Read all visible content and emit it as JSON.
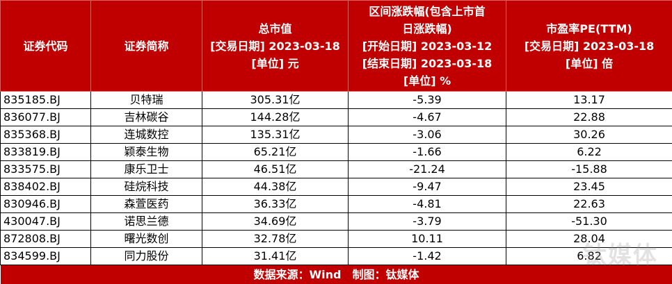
{
  "table": {
    "header": [
      [
        "证券代码"
      ],
      [
        "证券简称"
      ],
      [
        "总市值",
        "[交易日期] 2023-03-18",
        "[单位] 元"
      ],
      [
        "区间涨跌幅(包含上市首",
        "日涨跌幅)",
        "[开始日期] 2023-03-12",
        "[结束日期] 2023-03-18",
        "[单位] %"
      ],
      [
        "市盈率PE(TTM)",
        "[交易日期] 2023-03-18",
        "[单位] 倍"
      ]
    ],
    "rows": [
      [
        "835185.BJ",
        "贝特瑞",
        "305.31亿",
        "-5.39",
        "13.17"
      ],
      [
        "836077.BJ",
        "吉林碳谷",
        "144.28亿",
        "-4.67",
        "22.88"
      ],
      [
        "835368.BJ",
        "连城数控",
        "135.31亿",
        "-3.06",
        "30.26"
      ],
      [
        "833819.BJ",
        "颖泰生物",
        "65.21亿",
        "-1.66",
        "6.22"
      ],
      [
        "833575.BJ",
        "康乐卫士",
        "46.51亿",
        "-21.24",
        "-15.88"
      ],
      [
        "838402.BJ",
        "硅烷科技",
        "44.38亿",
        "-9.47",
        "23.45"
      ],
      [
        "830946.BJ",
        "森萱医药",
        "36.33亿",
        "-4.81",
        "22.63"
      ],
      [
        "430047.BJ",
        "诺思兰德",
        "34.69亿",
        "-3.79",
        "-51.30"
      ],
      [
        "872808.BJ",
        "曙光数创",
        "32.78亿",
        "10.11",
        "28.04"
      ],
      [
        "834599.BJ",
        "同力股份",
        "31.41亿",
        "-1.42",
        "6.82"
      ]
    ],
    "footer": "数据来源：Wind　制图：钛媒体"
  },
  "watermark": "钛媒体"
}
